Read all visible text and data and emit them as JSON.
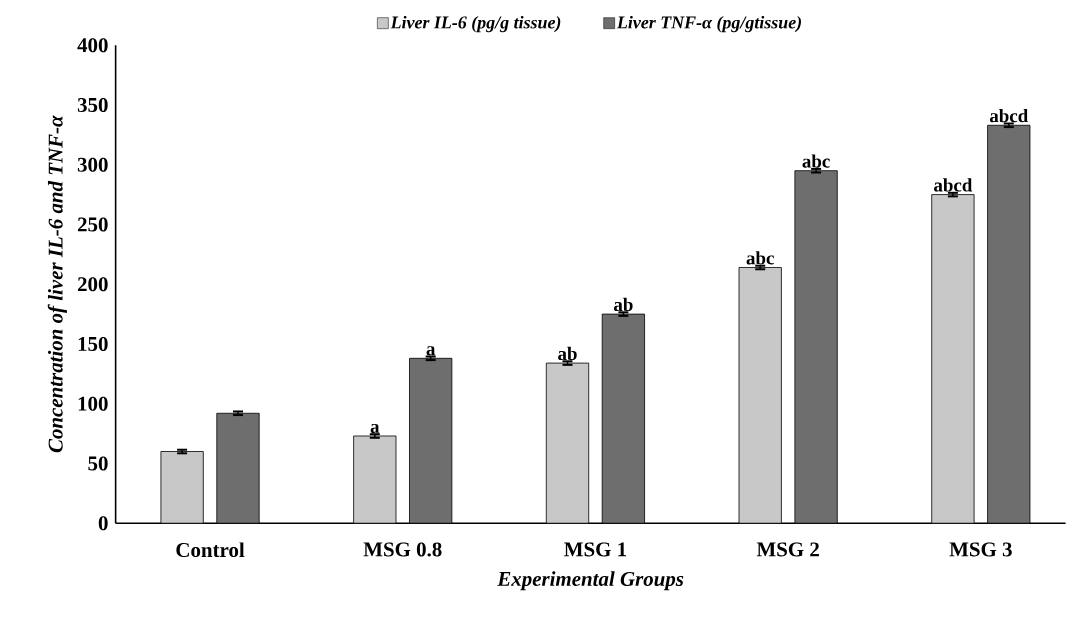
{
  "chart_data": {
    "type": "bar",
    "xlabel": "Experimental Groups",
    "ylabel": "Concentration of liver IL-6 and TNF-α",
    "categories": [
      "Control",
      "MSG 0.8",
      "MSG 1",
      "MSG 2",
      "MSG 3"
    ],
    "series": [
      {
        "name": "Liver IL-6 (pg/g tissue)",
        "color": "#c8c8c8",
        "values": [
          60,
          73,
          134,
          214,
          275
        ],
        "errors": [
          1.5,
          1.5,
          1.5,
          1.5,
          1.5
        ],
        "value_labels": [
          null,
          "a",
          "ab",
          "abc",
          "abcd"
        ]
      },
      {
        "name": "Liver TNF-α (pg/gtissue)",
        "color": "#6e6e6e",
        "values": [
          92,
          138,
          175,
          295,
          333
        ],
        "errors": [
          1.5,
          1.5,
          1.5,
          1.5,
          1.5
        ],
        "value_labels": [
          null,
          "a",
          "ab",
          "abc",
          "abcd"
        ]
      }
    ],
    "ylim": [
      0,
      400
    ],
    "yticks": [
      0,
      50,
      100,
      150,
      200,
      250,
      300,
      350,
      400
    ],
    "grid": false,
    "legend": "top"
  }
}
